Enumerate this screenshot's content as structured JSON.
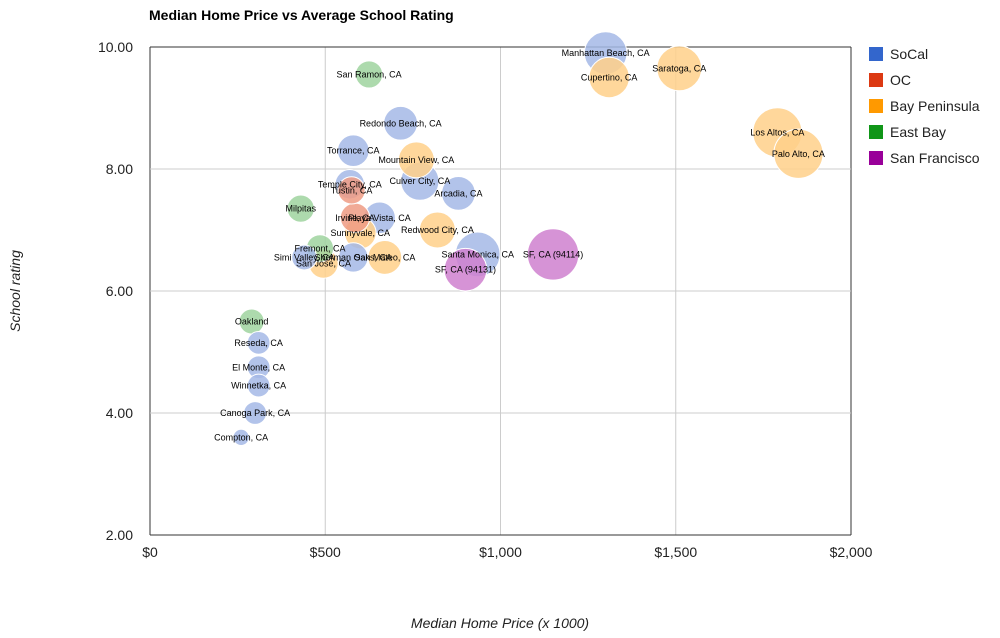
{
  "chart_data": {
    "type": "scatter",
    "title": "Median Home Price vs Average School Rating",
    "xlabel": "Median Home Price (x 1000)",
    "ylabel": "School rating",
    "xlim": [
      0,
      2000
    ],
    "ylim": [
      2,
      10
    ],
    "xticks": [
      {
        "value": 0,
        "label": "$0"
      },
      {
        "value": 500,
        "label": "$500"
      },
      {
        "value": 1000,
        "label": "$1,000"
      },
      {
        "value": 1500,
        "label": "$1,500"
      },
      {
        "value": 2000,
        "label": "$2,000"
      }
    ],
    "yticks": [
      {
        "value": 2,
        "label": "2.00"
      },
      {
        "value": 4,
        "label": "4.00"
      },
      {
        "value": 6,
        "label": "6.00"
      },
      {
        "value": 8,
        "label": "8.00"
      },
      {
        "value": 10,
        "label": "10.00"
      }
    ],
    "grid": true,
    "legend_position": "right",
    "series": [
      {
        "name": "SoCal",
        "color": "#3366cc",
        "bubble_color": "#a4b8e6",
        "points": [
          {
            "label": "Manhattan Beach, CA",
            "x": 1300,
            "y": 9.9,
            "size": 0.65
          },
          {
            "label": "Redondo Beach, CA",
            "x": 715,
            "y": 8.75,
            "size": 0.45
          },
          {
            "label": "Torrance, CA",
            "x": 580,
            "y": 8.3,
            "size": 0.4
          },
          {
            "label": "Temple City, CA",
            "x": 570,
            "y": 7.75,
            "size": 0.35
          },
          {
            "label": "Culver City, CA",
            "x": 770,
            "y": 7.8,
            "size": 0.55
          },
          {
            "label": "Arcadia, CA",
            "x": 880,
            "y": 7.6,
            "size": 0.45
          },
          {
            "label": "Playa Vista, CA",
            "x": 655,
            "y": 7.2,
            "size": 0.4
          },
          {
            "label": "Santa Monica, CA",
            "x": 935,
            "y": 6.6,
            "size": 0.7
          },
          {
            "label": "Simi Valley, CA",
            "x": 440,
            "y": 6.55,
            "size": 0.25
          },
          {
            "label": "Sherman Oaks, CA",
            "x": 580,
            "y": 6.55,
            "size": 0.35
          },
          {
            "label": "Reseda, CA",
            "x": 310,
            "y": 5.15,
            "size": 0.2
          },
          {
            "label": "El Monte, CA",
            "x": 310,
            "y": 4.75,
            "size": 0.2
          },
          {
            "label": "Winnetka, CA",
            "x": 310,
            "y": 4.45,
            "size": 0.2
          },
          {
            "label": "Canoga Park, CA",
            "x": 300,
            "y": 4.0,
            "size": 0.2
          },
          {
            "label": "Compton, CA",
            "x": 260,
            "y": 3.6,
            "size": 0.05
          }
        ]
      },
      {
        "name": "OC",
        "color": "#dc3912",
        "bubble_color": "#ee9b84",
        "points": [
          {
            "label": "Tustin, CA",
            "x": 575,
            "y": 7.65,
            "size": 0.3
          },
          {
            "label": "Irvine, CA",
            "x": 585,
            "y": 7.2,
            "size": 0.35
          }
        ]
      },
      {
        "name": "Bay Peninsula",
        "color": "#ff9900",
        "bubble_color": "#ffd08a",
        "points": [
          {
            "label": "Saratoga, CA",
            "x": 1510,
            "y": 9.65,
            "size": 0.7
          },
          {
            "label": "Cupertino, CA",
            "x": 1310,
            "y": 9.5,
            "size": 0.6
          },
          {
            "label": "Los Altos, CA",
            "x": 1790,
            "y": 8.6,
            "size": 0.8
          },
          {
            "label": "Palo Alto, CA",
            "x": 1850,
            "y": 8.25,
            "size": 0.8
          },
          {
            "label": "Mountain View, CA",
            "x": 760,
            "y": 8.15,
            "size": 0.5
          },
          {
            "label": "Redwood City, CA",
            "x": 820,
            "y": 7.0,
            "size": 0.5
          },
          {
            "label": "Sunnyvale, CA",
            "x": 600,
            "y": 6.95,
            "size": 0.4
          },
          {
            "label": "San Jose, CA",
            "x": 495,
            "y": 6.45,
            "size": 0.35
          },
          {
            "label": "San Mateo, CA",
            "x": 670,
            "y": 6.55,
            "size": 0.45
          }
        ]
      },
      {
        "name": "East Bay",
        "color": "#109618",
        "bubble_color": "#9fd49f",
        "points": [
          {
            "label": "San Ramon, CA",
            "x": 625,
            "y": 9.55,
            "size": 0.3
          },
          {
            "label": "Milpitas",
            "x": 430,
            "y": 7.35,
            "size": 0.3
          },
          {
            "label": "Fremont, CA",
            "x": 485,
            "y": 6.7,
            "size": 0.3
          },
          {
            "label": "Oakland",
            "x": 290,
            "y": 5.5,
            "size": 0.25
          }
        ]
      },
      {
        "name": "San Francisco",
        "color": "#990099",
        "bubble_color": "#cf80cf",
        "points": [
          {
            "label": "SF, CA (94114)",
            "x": 1150,
            "y": 6.6,
            "size": 0.85
          },
          {
            "label": "SF, CA (94131)",
            "x": 900,
            "y": 6.35,
            "size": 0.65
          }
        ]
      }
    ]
  }
}
